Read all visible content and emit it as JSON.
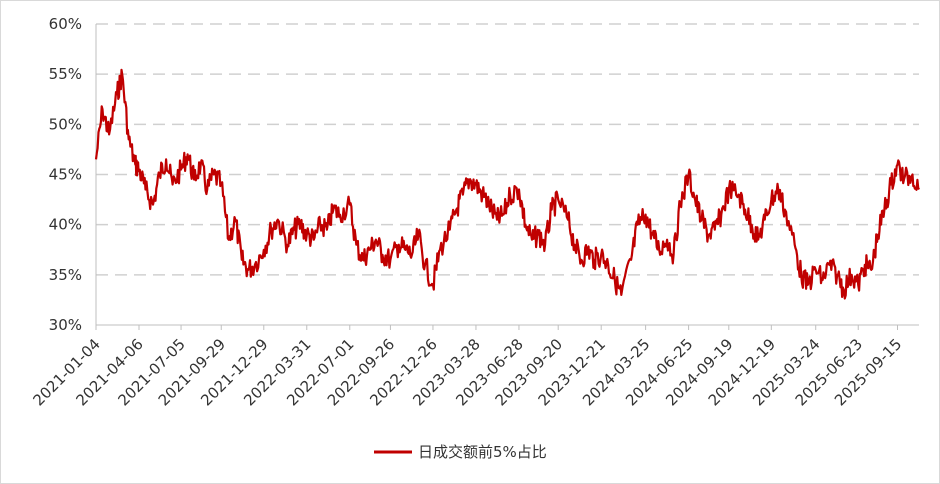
{
  "chart_data": {
    "type": "line",
    "title": "",
    "xlabel": "",
    "ylabel": "",
    "ylim": [
      30,
      60
    ],
    "y_unit": "%",
    "yticks": [
      "30%",
      "35%",
      "40%",
      "45%",
      "50%",
      "55%",
      "60%"
    ],
    "xticks": [
      "2021-01-04",
      "2021-04-06",
      "2021-07-05",
      "2021-09-29",
      "2021-12-29",
      "2022-03-31",
      "2022-07-01",
      "2022-09-26",
      "2022-12-26",
      "2023-03-28",
      "2023-06-28",
      "2023-09-20",
      "2023-12-21",
      "2024-03-25",
      "2024-06-25",
      "2024-09-19",
      "2024-12-19",
      "2025-03-24",
      "2025-06-23",
      "2025-09-15"
    ],
    "grid": "horizontal-dashed",
    "legend_position": "bottom-center",
    "series": [
      {
        "name": "日成交额前5%占比",
        "color": "#c00000",
        "x": [
          "2021-01-04",
          "2021-01-18",
          "2021-02-01",
          "2021-02-18",
          "2021-03-01",
          "2021-03-15",
          "2021-03-29",
          "2021-04-06",
          "2021-04-20",
          "2021-05-06",
          "2021-05-20",
          "2021-06-03",
          "2021-06-17",
          "2021-07-05",
          "2021-07-19",
          "2021-08-02",
          "2021-08-16",
          "2021-08-30",
          "2021-09-13",
          "2021-09-29",
          "2021-10-15",
          "2021-10-29",
          "2021-11-12",
          "2021-11-26",
          "2021-12-10",
          "2021-12-29",
          "2022-01-14",
          "2022-01-28",
          "2022-02-18",
          "2022-03-04",
          "2022-03-18",
          "2022-03-31",
          "2022-04-15",
          "2022-04-29",
          "2022-05-13",
          "2022-05-27",
          "2022-06-10",
          "2022-07-01",
          "2022-07-15",
          "2022-07-29",
          "2022-08-12",
          "2022-08-26",
          "2022-09-09",
          "2022-09-26",
          "2022-10-14",
          "2022-10-28",
          "2022-11-11",
          "2022-11-25",
          "2022-12-09",
          "2022-12-26",
          "2023-01-10",
          "2023-01-31",
          "2023-02-14",
          "2023-02-28",
          "2023-03-14",
          "2023-03-28",
          "2023-04-11",
          "2023-04-25",
          "2023-05-12",
          "2023-05-26",
          "2023-06-09",
          "2023-06-28",
          "2023-07-12",
          "2023-07-26",
          "2023-08-09",
          "2023-08-23",
          "2023-09-06",
          "2023-09-20",
          "2023-10-11",
          "2023-10-25",
          "2023-11-08",
          "2023-11-22",
          "2023-12-06",
          "2023-12-21",
          "2024-01-05",
          "2024-01-19",
          "2024-02-02",
          "2024-02-23",
          "2024-03-08",
          "2024-03-25",
          "2024-04-09",
          "2024-04-23",
          "2024-05-10",
          "2024-05-24",
          "2024-06-07",
          "2024-06-25",
          "2024-07-09",
          "2024-07-23",
          "2024-08-06",
          "2024-08-20",
          "2024-09-03",
          "2024-09-19",
          "2024-10-10",
          "2024-10-24",
          "2024-11-07",
          "2024-11-21",
          "2024-12-05",
          "2024-12-19",
          "2025-01-03",
          "2025-01-17",
          "2025-02-07",
          "2025-02-21",
          "2025-03-07",
          "2025-03-24",
          "2025-04-08",
          "2025-04-22",
          "2025-05-09",
          "2025-05-23",
          "2025-06-09",
          "2025-06-23",
          "2025-07-07",
          "2025-07-21",
          "2025-08-04",
          "2025-08-18",
          "2025-09-01",
          "2025-09-15",
          "2025-09-29",
          "2025-10-17",
          "2025-10-31"
        ],
        "values": [
          46.5,
          51.5,
          49.0,
          53.0,
          55.0,
          48.5,
          46.0,
          45.5,
          43.5,
          42.0,
          45.0,
          46.5,
          44.0,
          45.5,
          47.0,
          44.5,
          46.0,
          43.5,
          45.0,
          44.0,
          38.5,
          40.5,
          36.5,
          35.5,
          36.0,
          37.5,
          39.5,
          40.5,
          38.0,
          39.5,
          40.0,
          39.0,
          38.5,
          40.0,
          39.5,
          41.5,
          41.0,
          42.0,
          38.0,
          36.5,
          37.5,
          38.5,
          37.0,
          36.5,
          38.0,
          37.5,
          37.0,
          39.0,
          36.0,
          34.0,
          37.5,
          39.5,
          41.5,
          43.0,
          44.5,
          44.0,
          43.0,
          42.0,
          40.5,
          41.0,
          43.0,
          43.5,
          40.0,
          38.5,
          39.0,
          38.0,
          41.5,
          42.5,
          40.5,
          38.0,
          36.5,
          37.5,
          36.5,
          37.0,
          36.0,
          34.5,
          33.0,
          36.5,
          40.0,
          41.0,
          39.0,
          37.5,
          38.5,
          37.0,
          42.0,
          45.0,
          42.5,
          40.5,
          39.0,
          39.5,
          41.0,
          43.5,
          43.0,
          41.5,
          40.0,
          38.5,
          40.5,
          42.5,
          43.5,
          41.5,
          38.0,
          35.0,
          34.0,
          35.5,
          34.5,
          36.0,
          35.0,
          33.5,
          35.0,
          34.0,
          36.0,
          35.5,
          39.0,
          41.5,
          44.0,
          46.0,
          44.5,
          45.0,
          43.5
        ]
      }
    ]
  }
}
